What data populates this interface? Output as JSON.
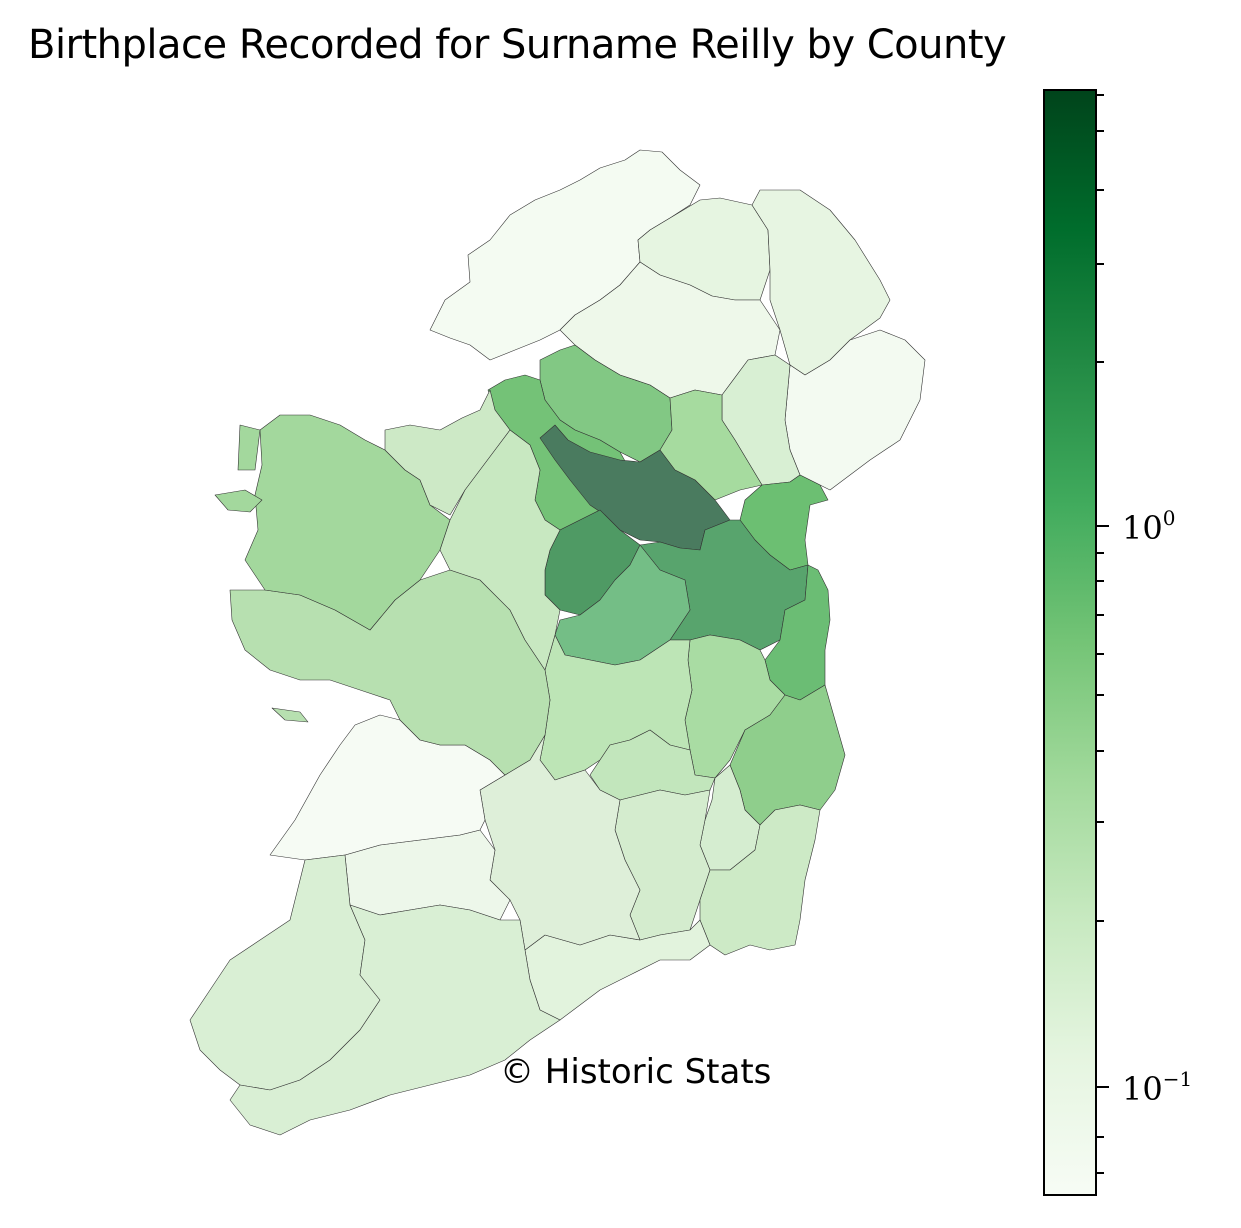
{
  "title": "Birthplace Recorded for Surname Reilly by County",
  "watermark": "© Historic Stats",
  "colorbar": {
    "scale": "log",
    "colormap": "Greens",
    "tick_labels": [
      {
        "base": "10",
        "exp": "0"
      },
      {
        "base": "10",
        "exp": "−1"
      }
    ],
    "colors": [
      "#f7fcf5",
      "#e5f5e0",
      "#c7e9c0",
      "#a1d99b",
      "#74c476",
      "#41ab5d",
      "#238b45",
      "#006d2c",
      "#00441b"
    ]
  },
  "counties": [
    {
      "name": "Cavan",
      "level": "highest"
    },
    {
      "name": "Meath",
      "level": "high"
    },
    {
      "name": "Westmeath",
      "level": "high"
    },
    {
      "name": "Longford",
      "level": "high"
    },
    {
      "name": "Offaly",
      "level": "mid-high"
    },
    {
      "name": "Leitrim",
      "level": "mid"
    },
    {
      "name": "Fermanagh",
      "level": "mid"
    },
    {
      "name": "Dublin",
      "level": "mid"
    },
    {
      "name": "Louth",
      "level": "mid"
    },
    {
      "name": "Wicklow",
      "level": "mid"
    },
    {
      "name": "Mayo",
      "level": "mid-low"
    },
    {
      "name": "Monaghan",
      "level": "mid-low"
    },
    {
      "name": "Kildare",
      "level": "mid-low"
    },
    {
      "name": "Galway",
      "level": "low"
    },
    {
      "name": "Roscommon",
      "level": "low"
    },
    {
      "name": "Sligo",
      "level": "low"
    },
    {
      "name": "Laois",
      "level": "low"
    },
    {
      "name": "Wexford",
      "level": "low"
    },
    {
      "name": "Armagh",
      "level": "low"
    },
    {
      "name": "Kilkenny",
      "level": "low"
    },
    {
      "name": "Carlow",
      "level": "low"
    },
    {
      "name": "Tipperary",
      "level": "lower"
    },
    {
      "name": "Cork",
      "level": "lower"
    },
    {
      "name": "Kerry",
      "level": "lower"
    },
    {
      "name": "Waterford",
      "level": "lower"
    },
    {
      "name": "Derry",
      "level": "lower"
    },
    {
      "name": "Antrim",
      "level": "lower"
    },
    {
      "name": "Tyrone",
      "level": "lowest"
    },
    {
      "name": "Limerick",
      "level": "lowest"
    },
    {
      "name": "Clare",
      "level": "lowest"
    },
    {
      "name": "Donegal",
      "level": "lowest"
    },
    {
      "name": "Down",
      "level": "lowest"
    }
  ]
}
